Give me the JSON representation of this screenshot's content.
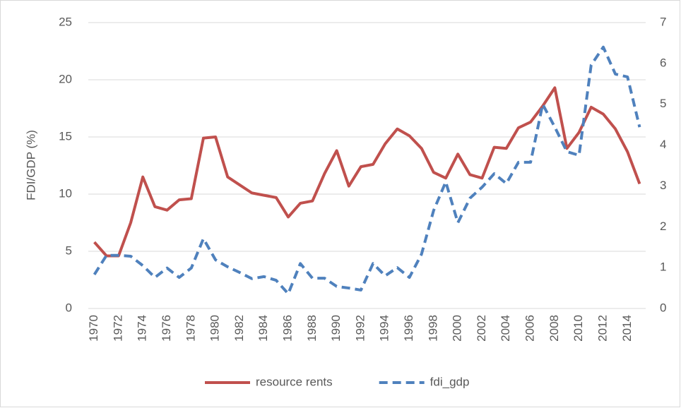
{
  "chart_data": {
    "type": "line",
    "y_label": "FDI/GDP (%)",
    "categories": [
      "1970",
      null,
      "1972",
      null,
      "1974",
      null,
      "1976",
      null,
      "1978",
      null,
      "1980",
      null,
      "1982",
      null,
      "1984",
      null,
      "1986",
      null,
      "1988",
      null,
      "1990",
      null,
      "1992",
      null,
      "1994",
      null,
      "1996",
      null,
      "1998",
      null,
      "2000",
      null,
      "2002",
      null,
      "2004",
      null,
      "2006",
      null,
      "2008",
      null,
      "2010",
      null,
      "2012",
      null,
      "2014",
      null
    ],
    "series": [
      {
        "name": "resource rents",
        "color": "#c0504d",
        "dashed": false,
        "values": [
          5.8,
          4.6,
          4.6,
          7.5,
          11.5,
          8.9,
          8.6,
          9.5,
          9.6,
          14.9,
          15.0,
          11.5,
          10.8,
          10.1,
          9.9,
          9.7,
          8.0,
          9.2,
          9.4,
          11.8,
          13.8,
          10.7,
          12.4,
          12.6,
          14.4,
          15.7,
          15.1,
          14.0,
          11.9,
          11.4,
          13.5,
          11.7,
          11.4,
          14.1,
          14.0,
          15.8,
          16.3,
          17.7,
          19.3,
          14.0,
          15.4,
          17.6,
          17.0,
          15.7,
          13.7,
          10.9
        ]
      },
      {
        "name": "fdi_gdp",
        "color": "#4f81bd",
        "dashed": true,
        "axis": "y2",
        "values": [
          0.83,
          1.3,
          1.3,
          1.28,
          1.05,
          0.76,
          0.99,
          0.76,
          0.99,
          1.71,
          1.19,
          1.02,
          0.88,
          0.73,
          0.78,
          0.69,
          0.36,
          1.1,
          0.74,
          0.74,
          0.54,
          0.5,
          0.45,
          1.1,
          0.8,
          1.0,
          0.76,
          1.33,
          2.4,
          3.1,
          2.1,
          2.7,
          2.97,
          3.3,
          3.06,
          3.58,
          3.58,
          5.0,
          4.44,
          3.84,
          3.75,
          5.96,
          6.4,
          5.74,
          5.67,
          4.44
        ]
      }
    ],
    "ylim": [
      0,
      25
    ],
    "yticks": [
      0,
      5,
      10,
      15,
      20,
      25
    ],
    "y2lim": [
      0,
      7
    ],
    "y2ticks": [
      0,
      1,
      2,
      3,
      4,
      5,
      6,
      7
    ],
    "grid": true,
    "legend": "bottom"
  }
}
